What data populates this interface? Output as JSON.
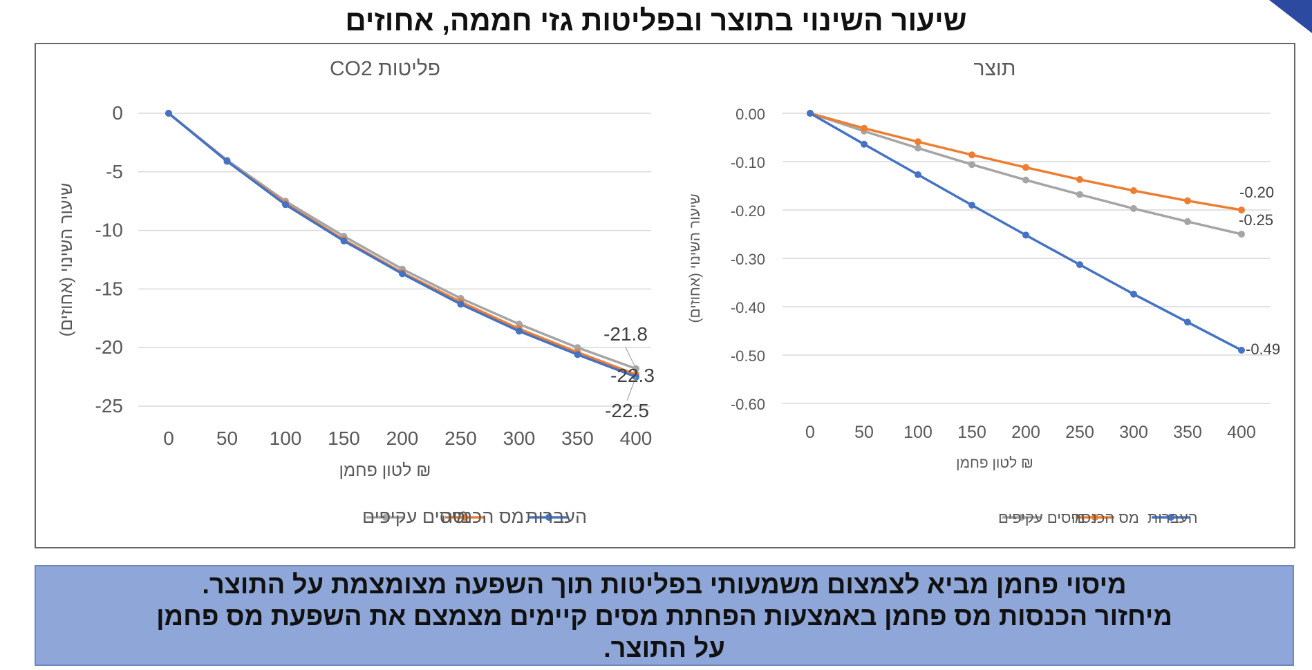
{
  "page": {
    "title": "שיעור השינוי בתוצר ובפליטות גזי חממה, אחוזים",
    "summary_lines": [
      "מיסוי פחמן מביא לצמצום משמעותי בפליטות תוך השפעה מצומצמת על התוצר.",
      "מיחזור הכנסות מס פחמן באמצעות הפחתת מסים קיימים מצמצם את השפעת מס פחמן",
      "על התוצר."
    ],
    "corner_color": "#2b4aa0"
  },
  "chart_data": [
    {
      "id": "emissions",
      "type": "line",
      "title": "פליטות CO2",
      "xlabel": "₪ לטון פחמן",
      "ylabel": "שיעור השינוי (אחוזים)",
      "x": [
        0,
        50,
        100,
        150,
        200,
        250,
        300,
        350,
        400
      ],
      "ylim": [
        -25,
        0
      ],
      "yticks": [
        0,
        -5,
        -10,
        -15,
        -20,
        -25
      ],
      "ytick_labels": [
        "0",
        "-5",
        "-10",
        "-15",
        "-20",
        "-25"
      ],
      "grid": true,
      "legend_position": "bottom",
      "series": [
        {
          "name": "העברות",
          "color": "#4472c4",
          "values": [
            0,
            -4.1,
            -7.8,
            -10.9,
            -13.7,
            -16.3,
            -18.6,
            -20.6,
            -22.5
          ],
          "end_label": "-22.5"
        },
        {
          "name": "מס הכנסה",
          "color": "#ed7d31",
          "values": [
            0,
            -4.1,
            -7.7,
            -10.8,
            -13.6,
            -16.1,
            -18.4,
            -20.4,
            -22.3
          ],
          "end_label": "-22.3"
        },
        {
          "name": "מיסים עקיפים",
          "color": "#a5a5a5",
          "values": [
            0,
            -4.0,
            -7.5,
            -10.5,
            -13.3,
            -15.8,
            -18.0,
            -20.0,
            -21.8
          ],
          "end_label": "-21.8"
        }
      ]
    },
    {
      "id": "output",
      "type": "line",
      "title": "תוצר",
      "xlabel": "₪ לטון פחמן",
      "ylabel": "שיעור השינוי (אחוזים)",
      "x": [
        0,
        50,
        100,
        150,
        200,
        250,
        300,
        350,
        400
      ],
      "ylim": [
        -0.6,
        0
      ],
      "yticks": [
        0,
        -0.1,
        -0.2,
        -0.3,
        -0.4,
        -0.5,
        -0.6
      ],
      "ytick_labels": [
        "0.00",
        "-0.10",
        "-0.20",
        "-0.30",
        "-0.40",
        "-0.50",
        "-0.60"
      ],
      "grid": true,
      "legend_position": "bottom",
      "series": [
        {
          "name": "העברות",
          "color": "#4472c4",
          "values": [
            0,
            -0.064,
            -0.127,
            -0.19,
            -0.252,
            -0.313,
            -0.374,
            -0.432,
            -0.49
          ],
          "end_label": "-0.49"
        },
        {
          "name": "מס הכנסה",
          "color": "#ed7d31",
          "values": [
            0,
            -0.031,
            -0.059,
            -0.086,
            -0.112,
            -0.137,
            -0.16,
            -0.181,
            -0.2
          ],
          "end_label": "-0.20"
        },
        {
          "name": "מיסים עקיפים",
          "color": "#a5a5a5",
          "values": [
            0,
            -0.037,
            -0.072,
            -0.106,
            -0.138,
            -0.168,
            -0.197,
            -0.224,
            -0.25
          ],
          "end_label": "-0.25"
        }
      ]
    }
  ]
}
